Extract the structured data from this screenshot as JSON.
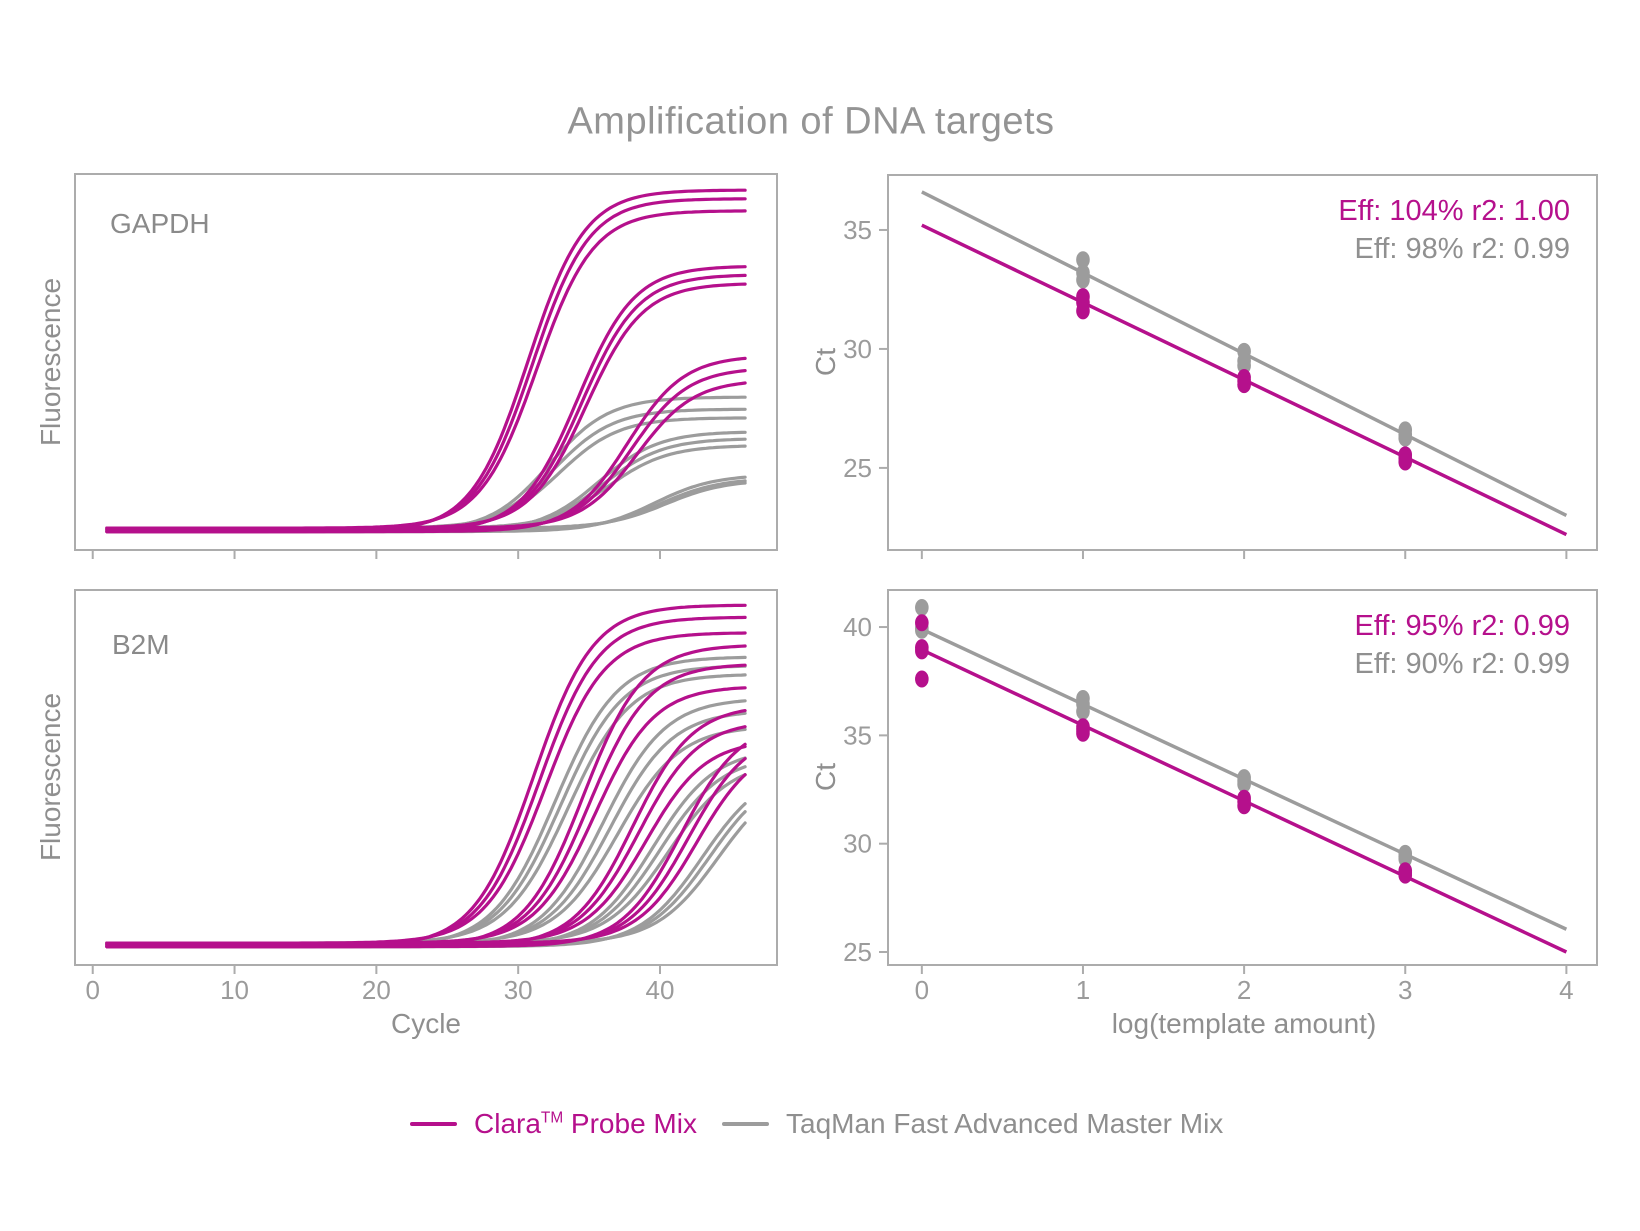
{
  "title": "Amplification of DNA targets",
  "colors": {
    "clara": "#b5108c",
    "taqman": "#9c9c9c",
    "axis": "#acacac",
    "tick_text": "#9b9b9b",
    "text": "#8f8f8f"
  },
  "legend": [
    {
      "series": "clara",
      "brand": "Clara",
      "tm": "TM",
      "rest": " Probe Mix"
    },
    {
      "series": "taqman",
      "label": "TaqMan Fast Advanced Master Mix"
    }
  ],
  "chart_data": [
    {
      "id": "gapdh-amplification",
      "type": "line",
      "panel_label": "GAPDH",
      "xlabel": "Cycle",
      "ylabel": "Fluorescence",
      "xticks": [
        0,
        10,
        20,
        30,
        40
      ],
      "x_tick_labels_visible": false,
      "xlim": [
        -1.25,
        48.25
      ],
      "cycle_range": [
        1,
        46
      ],
      "baseline_fluorescence": 0.012,
      "series": [
        {
          "name": "TaqMan Fast Advanced Master Mix",
          "color": "taqman",
          "sigmoid_k": 2.1,
          "groups": [
            {
              "midpoints": [
                32.2,
                32.5,
                32.9
              ],
              "plateaus": [
                0.39,
                0.35,
                0.32
              ]
            },
            {
              "midpoints": [
                35.7,
                36.0,
                36.3
              ],
              "plateaus": [
                0.29,
                0.265,
                0.24
              ]
            },
            {
              "midpoints": [
                39.6,
                40.0,
                40.4
              ],
              "plateaus": [
                0.165,
                0.15,
                0.14
              ]
            }
          ]
        },
        {
          "name": "Clara Probe Mix",
          "color": "clara",
          "sigmoid_k": 2.0,
          "groups": [
            {
              "midpoints": [
                30.7,
                31.0,
                31.3
              ],
              "plateaus": [
                0.99,
                0.96,
                0.92
              ]
            },
            {
              "midpoints": [
                34.2,
                34.5,
                34.8
              ],
              "plateaus": [
                0.77,
                0.74,
                0.71
              ]
            },
            {
              "midpoints": [
                37.7,
                38.0,
                38.4
              ],
              "plateaus": [
                0.51,
                0.47,
                0.43
              ]
            }
          ]
        }
      ]
    },
    {
      "id": "gapdh-standard-curve",
      "type": "scatter",
      "ylabel": "Ct",
      "yticks": [
        25,
        30,
        35
      ],
      "ylim": [
        21.55,
        37.31
      ],
      "xticks": [
        0,
        1,
        2,
        3,
        4
      ],
      "x_tick_labels_visible": false,
      "xlim": [
        -0.21,
        4.19
      ],
      "annotations": [
        {
          "text": "Eff: 104% r2: 1.00",
          "series": "clara"
        },
        {
          "text": "Eff: 98% r2: 0.99",
          "series": "taqman"
        }
      ],
      "series": [
        {
          "name": "TaqMan Fast Advanced Master Mix",
          "color": "taqman",
          "line": {
            "x": [
              0,
              4
            ],
            "y": [
              36.6,
              23.0
            ]
          },
          "points": [
            [
              1,
              33.75
            ],
            [
              1,
              33.2
            ],
            [
              1,
              32.9
            ],
            [
              2,
              29.9
            ],
            [
              2,
              29.5
            ],
            [
              2,
              29.3
            ],
            [
              3,
              26.6
            ],
            [
              3,
              26.4
            ],
            [
              3,
              26.25
            ]
          ]
        },
        {
          "name": "Clara Probe Mix",
          "color": "clara",
          "line": {
            "x": [
              0,
              4
            ],
            "y": [
              35.2,
              22.2
            ]
          },
          "points": [
            [
              1,
              32.2
            ],
            [
              1,
              31.95
            ],
            [
              1,
              31.6
            ],
            [
              2,
              28.8
            ],
            [
              2,
              28.65
            ],
            [
              2,
              28.5
            ],
            [
              3,
              25.55
            ],
            [
              3,
              25.4
            ],
            [
              3,
              25.25
            ]
          ]
        }
      ]
    },
    {
      "id": "b2m-amplification",
      "type": "line",
      "panel_label": "B2M",
      "xlabel": "Cycle",
      "ylabel": "Fluorescence",
      "xticks": [
        0,
        10,
        20,
        30,
        40
      ],
      "x_tick_labels_visible": true,
      "xlim": [
        -1.25,
        48.25
      ],
      "cycle_range": [
        1,
        46
      ],
      "baseline_fluorescence": 0.012,
      "series": [
        {
          "name": "TaqMan Fast Advanced Master Mix",
          "color": "taqman",
          "sigmoid_k": 2.2,
          "groups": [
            {
              "midpoints": [
                32.6,
                33.0,
                33.5
              ],
              "plateaus": [
                0.84,
                0.81,
                0.78
              ]
            },
            {
              "midpoints": [
                36.0,
                36.5,
                37.0
              ],
              "plateaus": [
                0.72,
                0.68,
                0.63
              ]
            },
            {
              "midpoints": [
                39.5,
                40.0,
                40.6
              ],
              "plateaus": [
                0.575,
                0.55,
                0.53
              ]
            },
            {
              "midpoints": [
                43.0,
                43.5,
                44.1
              ],
              "plateaus": [
                0.52,
                0.51,
                0.495
              ]
            }
          ]
        },
        {
          "name": "Clara Probe Mix",
          "color": "clara",
          "sigmoid_k": 2.1,
          "groups": [
            {
              "midpoints": [
                31.1,
                31.5,
                31.9
              ],
              "plateaus": [
                0.99,
                0.95,
                0.9
              ]
            },
            {
              "midpoints": [
                34.6,
                35.0,
                35.4
              ],
              "plateaus": [
                0.875,
                0.815,
                0.745
              ]
            },
            {
              "midpoints": [
                38.1,
                38.5,
                39.0
              ],
              "plateaus": [
                0.7,
                0.65,
                0.59
              ]
            },
            {
              "midpoints": [
                41.5,
                42.0,
                42.6
              ],
              "plateaus": [
                0.655,
                0.62,
                0.585
              ]
            }
          ]
        }
      ]
    },
    {
      "id": "b2m-standard-curve",
      "type": "scatter",
      "xlabel": "log(template amount)",
      "ylabel": "Ct",
      "yticks": [
        25,
        30,
        35,
        40
      ],
      "ylim": [
        24.4,
        41.71
      ],
      "xticks": [
        0,
        1,
        2,
        3,
        4
      ],
      "x_tick_labels_visible": true,
      "xlim": [
        -0.21,
        4.19
      ],
      "annotations": [
        {
          "text": "Eff: 95% r2: 0.99",
          "series": "clara"
        },
        {
          "text": "Eff: 90% r2: 0.99",
          "series": "taqman"
        }
      ],
      "series": [
        {
          "name": "TaqMan Fast Advanced Master Mix",
          "color": "taqman",
          "line": {
            "x": [
              0,
              4
            ],
            "y": [
              39.9,
              26.05
            ]
          },
          "points": [
            [
              0,
              40.9
            ],
            [
              0,
              39.95
            ],
            [
              0,
              39.85
            ],
            [
              1,
              36.7
            ],
            [
              1,
              36.45
            ],
            [
              1,
              36.1
            ],
            [
              2,
              33.05
            ],
            [
              2,
              32.9
            ],
            [
              2,
              32.75
            ],
            [
              3,
              29.55
            ],
            [
              3,
              29.4
            ],
            [
              3,
              29.3
            ]
          ]
        },
        {
          "name": "Clara Probe Mix",
          "color": "clara",
          "line": {
            "x": [
              0,
              4
            ],
            "y": [
              38.95,
              25.0
            ]
          },
          "points": [
            [
              0,
              40.2
            ],
            [
              0,
              39.05
            ],
            [
              0,
              38.9
            ],
            [
              0,
              37.6
            ],
            [
              1,
              35.4
            ],
            [
              1,
              35.25
            ],
            [
              1,
              35.1
            ],
            [
              2,
              32.1
            ],
            [
              2,
              31.95
            ],
            [
              2,
              31.75
            ],
            [
              3,
              28.75
            ],
            [
              3,
              28.65
            ],
            [
              3,
              28.55
            ]
          ]
        }
      ]
    }
  ]
}
